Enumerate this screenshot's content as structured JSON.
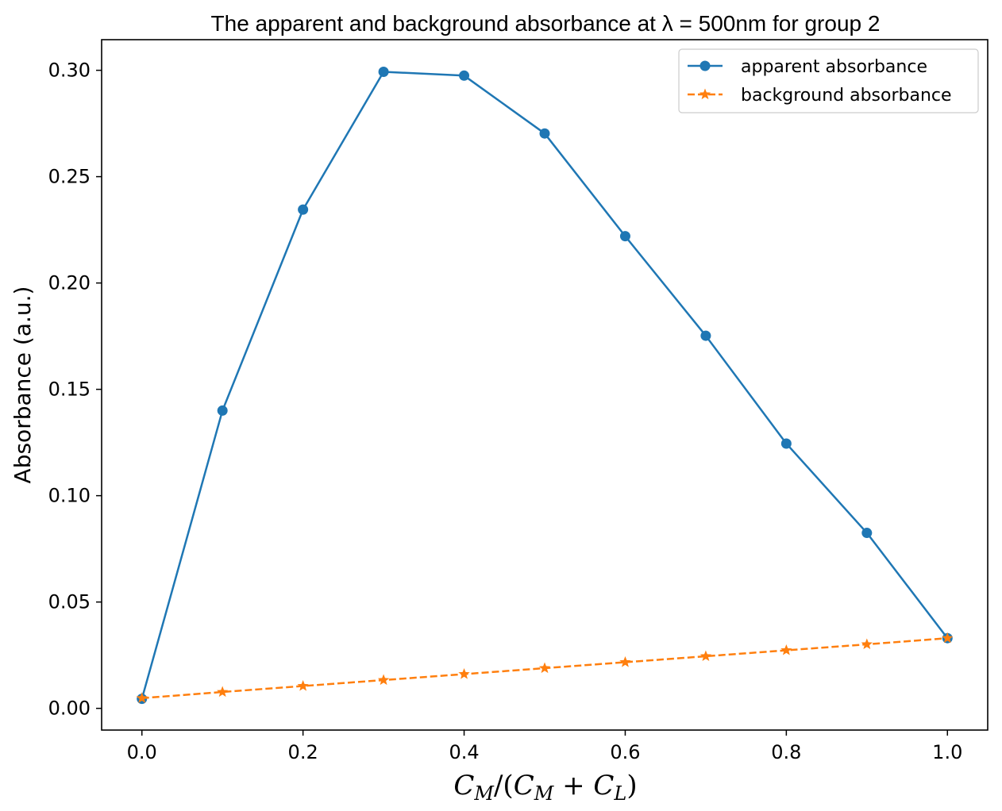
{
  "chart_data": {
    "type": "line",
    "title": "The apparent and background absorbance at λ = 500nm for group 2",
    "xlabel": {
      "c": "C",
      "m": "M",
      "slash": "/(",
      "plus": " + ",
      "l": "L",
      "close": ")"
    },
    "ylabel": "Absorbance (a.u.)",
    "xlim": [
      -0.05,
      1.05
    ],
    "ylim": [
      -0.0102,
      0.3144
    ],
    "xticks": [
      0.0,
      0.2,
      0.4,
      0.6,
      0.8,
      1.0
    ],
    "xtick_labels": [
      "0.0",
      "0.2",
      "0.4",
      "0.6",
      "0.8",
      "1.0"
    ],
    "yticks": [
      0.0,
      0.05,
      0.1,
      0.15,
      0.2,
      0.25,
      0.3
    ],
    "ytick_labels": [
      "0.00",
      "0.05",
      "0.10",
      "0.15",
      "0.20",
      "0.25",
      "0.30"
    ],
    "legend_position": "top-right",
    "grid": false,
    "x": [
      0.0,
      0.1,
      0.2,
      0.3,
      0.4,
      0.5,
      0.6,
      0.7,
      0.8,
      0.9,
      1.0
    ],
    "series": [
      {
        "name": "apparent absorbance",
        "color": "#1f77b4",
        "marker": "circle",
        "linestyle": "solid",
        "values": [
          0.0045,
          0.14,
          0.2345,
          0.2993,
          0.2975,
          0.2703,
          0.222,
          0.1752,
          0.1245,
          0.0825,
          0.033
        ]
      },
      {
        "name": "background absorbance",
        "color": "#ff7f0e",
        "marker": "star",
        "linestyle": "dashed",
        "values": [
          0.0048,
          0.0077,
          0.0105,
          0.0133,
          0.0161,
          0.0189,
          0.0217,
          0.0245,
          0.0273,
          0.0301,
          0.033
        ]
      }
    ]
  }
}
